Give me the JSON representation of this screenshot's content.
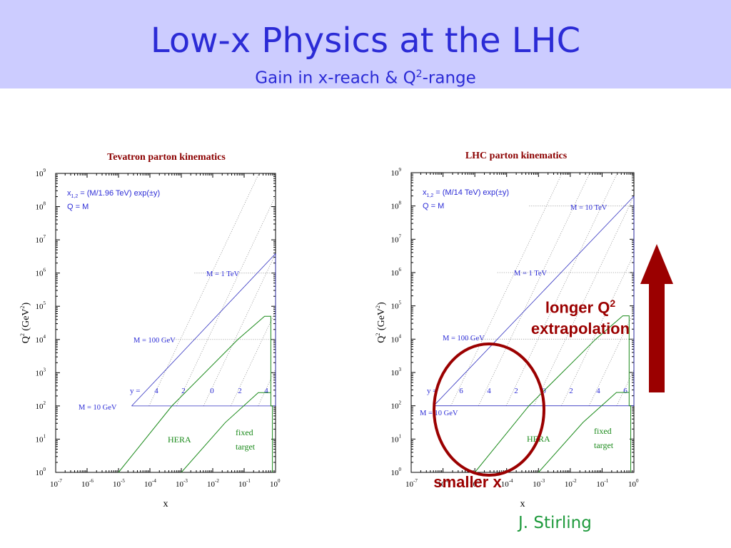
{
  "slide": {
    "title": "Low-x Physics at the LHC",
    "subtitle": "Gain in x-reach & Q",
    "subtitle_sup": "2",
    "subtitle_tail": "-range",
    "credit": "J. Stirling"
  },
  "colors": {
    "header_bg": "#ccccff",
    "title": "#2b2bd6",
    "chart_title": "#8b0000",
    "kinematic_lines": "#3030c0",
    "hera": "#1a8a1a",
    "annotation": "#9b0000",
    "credit": "#1e9a3c"
  },
  "annotations": {
    "longer_q2_line1": "longer Q",
    "longer_q2_sup": "2",
    "longer_q2_line2": "extrapolation",
    "smaller_x": "smaller x"
  },
  "chart_data": [
    {
      "type": "line",
      "title": "Tevatron parton kinematics",
      "xlabel": "x",
      "ylabel": "Q",
      "ylabel_sup": "2",
      "ylabel_unit": "(GeV",
      "ylabel_unit_sup": "2",
      "ylabel_close": ")",
      "xscale": "log",
      "yscale": "log",
      "xlim_exp": [
        -7,
        0
      ],
      "ylim_exp": [
        0,
        9
      ],
      "x_tick_exps": [
        -7,
        -6,
        -5,
        -4,
        -3,
        -2,
        -1,
        0
      ],
      "y_tick_exps": [
        0,
        1,
        2,
        3,
        4,
        5,
        6,
        7,
        8,
        9
      ],
      "tick_base": "10",
      "formula": "x",
      "formula_sub": "1,2",
      "formula_tail": " = (M/1.96 TeV) exp(±y)",
      "formula_line2": "Q = M",
      "sqrt_s_GeV": 1960,
      "mass_lines": [
        {
          "label": "M = 10 GeV",
          "M_GeV": 10
        },
        {
          "label": "M = 100 GeV",
          "M_GeV": 100
        },
        {
          "label": "M = 1 TeV",
          "M_GeV": 1000
        }
      ],
      "y_prefix": "y =",
      "y_values": [
        "4",
        "2",
        "0",
        "2",
        "4"
      ],
      "y_numeric": [
        4,
        2,
        0,
        -2,
        -4
      ],
      "y_max": 5.27,
      "regions": [
        {
          "name": "HERA",
          "label": "HERA",
          "boundary": [
            [
              -5,
              0
            ],
            [
              -3.3,
              2
            ],
            [
              -1.2,
              4
            ],
            [
              -0.35,
              4.7
            ],
            [
              -0.15,
              4.7
            ],
            [
              -0.15,
              2
            ],
            [
              -0.1,
              2
            ],
            [
              -0.1,
              0
            ]
          ]
        },
        {
          "name": "fixed target",
          "label1": "fixed",
          "label2": "target",
          "boundary": [
            [
              -3,
              0
            ],
            [
              -1.6,
              1.5
            ],
            [
              -0.55,
              2.4
            ],
            [
              -0.15,
              2.4
            ]
          ]
        }
      ]
    },
    {
      "type": "line",
      "title": "LHC parton kinematics",
      "xlabel": "x",
      "ylabel": "Q",
      "ylabel_sup": "2",
      "ylabel_unit": "(GeV",
      "ylabel_unit_sup": "2",
      "ylabel_close": ")",
      "xscale": "log",
      "yscale": "log",
      "xlim_exp": [
        -7,
        0
      ],
      "ylim_exp": [
        0,
        9
      ],
      "x_tick_exps": [
        -7,
        -6,
        -5,
        -4,
        -3,
        -2,
        -1,
        0
      ],
      "y_tick_exps": [
        0,
        1,
        2,
        3,
        4,
        5,
        6,
        7,
        8,
        9
      ],
      "tick_base": "10",
      "formula": "x",
      "formula_sub": "1,2",
      "formula_tail": " = (M/14 TeV) exp(±y)",
      "formula_line2": "Q = M",
      "sqrt_s_GeV": 14000,
      "mass_lines": [
        {
          "label": "M = 10 GeV",
          "M_GeV": 10
        },
        {
          "label": "M = 100 GeV",
          "M_GeV": 100
        },
        {
          "label": "M = 1 TeV",
          "M_GeV": 1000
        },
        {
          "label": "M = 10 TeV",
          "M_GeV": 10000
        }
      ],
      "y_prefix": "y =",
      "y_values": [
        "6",
        "4",
        "2",
        "0",
        "2",
        "4",
        "6"
      ],
      "y_numeric": [
        6,
        4,
        2,
        0,
        -2,
        -4,
        -6
      ],
      "y_max": 7.24,
      "regions": [
        {
          "name": "HERA",
          "label": "HERA",
          "boundary": [
            [
              -5,
              0
            ],
            [
              -3.3,
              2
            ],
            [
              -1.2,
              4
            ],
            [
              -0.35,
              4.7
            ],
            [
              -0.15,
              4.7
            ],
            [
              -0.15,
              2
            ],
            [
              -0.1,
              2
            ],
            [
              -0.1,
              0
            ]
          ]
        },
        {
          "name": "fixed target",
          "label1": "fixed",
          "label2": "target",
          "boundary": [
            [
              -3,
              0
            ],
            [
              -1.6,
              1.5
            ],
            [
              -0.55,
              2.4
            ],
            [
              -0.15,
              2.4
            ]
          ]
        }
      ]
    }
  ]
}
